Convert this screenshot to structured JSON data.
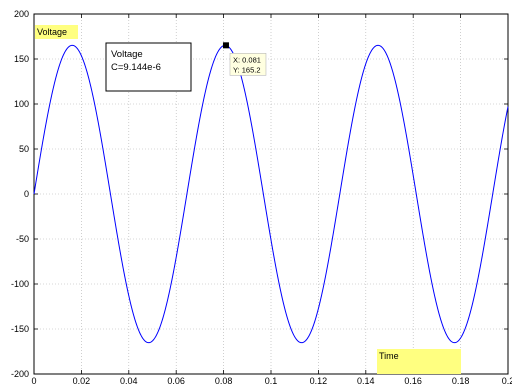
{
  "chart_data": {
    "type": "line",
    "xlim": [
      0,
      0.2
    ],
    "ylim": [
      -200,
      200
    ],
    "x_ticks": [
      "0",
      "0.02",
      "0.04",
      "0.06",
      "0.08",
      "0.1",
      "0.12",
      "0.14",
      "0.16",
      "0.18",
      "0.2"
    ],
    "y_ticks": [
      "200",
      "150",
      "100",
      "50",
      "0",
      "-50",
      "-100",
      "-150",
      "-200"
    ],
    "grid": true,
    "series": [
      {
        "name": "Voltage",
        "color": "#0000ff",
        "amplitude": 165.2,
        "frequency_hz": 15.5,
        "x_start": 0,
        "x_end": 0.2
      }
    ],
    "annotations": {
      "top_label": "Voltage",
      "bottom_label": "Time",
      "label_background": "#ffff80"
    },
    "legend": {
      "line1": "Voltage",
      "line2": "C=9.144e-6"
    },
    "datatip": {
      "x_value": 0.081,
      "y_value": 165.2,
      "x_text": "X: 0.081",
      "y_text": "Y: 165.2",
      "background": "#ffffe0"
    }
  }
}
